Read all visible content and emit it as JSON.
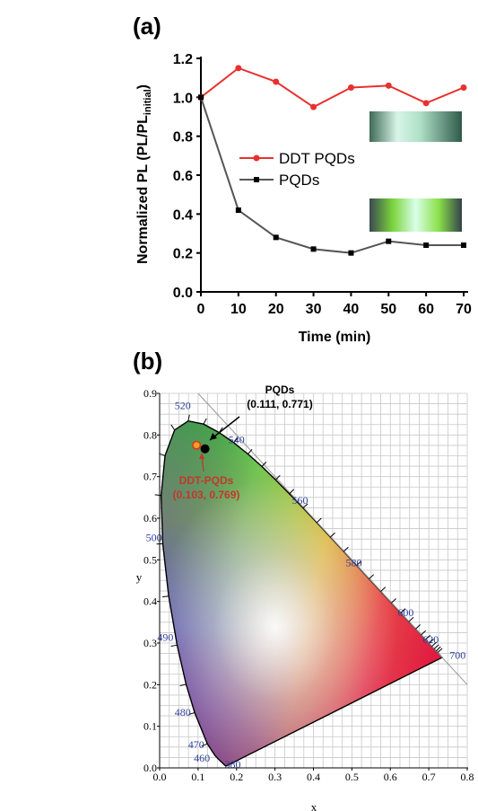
{
  "chart_data": [
    {
      "type": "line",
      "panel_label": "(a)",
      "xlabel": "Time (min)",
      "ylabel": "Normalized PL (PL/PL",
      "ylabel_subscript": "initial",
      "ylabel_close": ")",
      "x": [
        0,
        10,
        20,
        30,
        40,
        50,
        60,
        70
      ],
      "xlim": [
        0,
        70
      ],
      "ylim": [
        0.0,
        1.2
      ],
      "xticks": [
        "0",
        "10",
        "20",
        "30",
        "40",
        "50",
        "60",
        "70"
      ],
      "yticks": [
        "0.0",
        "0.2",
        "0.4",
        "0.6",
        "0.8",
        "1.0",
        "1.2"
      ],
      "legend_position": "center-right",
      "series": [
        {
          "name": "DDT PQDs",
          "color": "#e8312f",
          "marker": "circle",
          "values": [
            1.0,
            1.15,
            1.08,
            0.95,
            1.05,
            1.06,
            0.97,
            1.05
          ]
        },
        {
          "name": "PQDs",
          "color": "#555555",
          "marker": "square",
          "values": [
            1.0,
            0.42,
            0.28,
            0.22,
            0.2,
            0.26,
            0.24,
            0.24
          ]
        }
      ],
      "insets": [
        "photo of sample film (top)",
        "photo of sample film (bottom)"
      ]
    },
    {
      "type": "scatter",
      "panel_label": "(b)",
      "xlabel": "x",
      "ylabel": "y",
      "xlim": [
        0.0,
        0.8
      ],
      "ylim": [
        0.0,
        0.9
      ],
      "xticks": [
        "0.0",
        "0.1",
        "0.2",
        "0.3",
        "0.4",
        "0.5",
        "0.6",
        "0.7",
        "0.8"
      ],
      "yticks": [
        "0.0",
        "0.1",
        "0.2",
        "0.3",
        "0.4",
        "0.5",
        "0.6",
        "0.7",
        "0.8",
        "0.9"
      ],
      "grid": true,
      "background": "CIE 1931 chromaticity diagram",
      "wavelength_labels": [
        "380",
        "460",
        "470",
        "480",
        "490",
        "500",
        "520",
        "540",
        "560",
        "580",
        "600",
        "620",
        "700"
      ],
      "points": [
        {
          "name": "PQDs",
          "coords": "(0.111, 0.771)",
          "x": 0.111,
          "y": 0.771,
          "color": "#000000"
        },
        {
          "name": "DDT-PQDs",
          "coords": "(0.103, 0.769)",
          "x": 0.103,
          "y": 0.769,
          "color": "#f0a020"
        }
      ]
    }
  ]
}
